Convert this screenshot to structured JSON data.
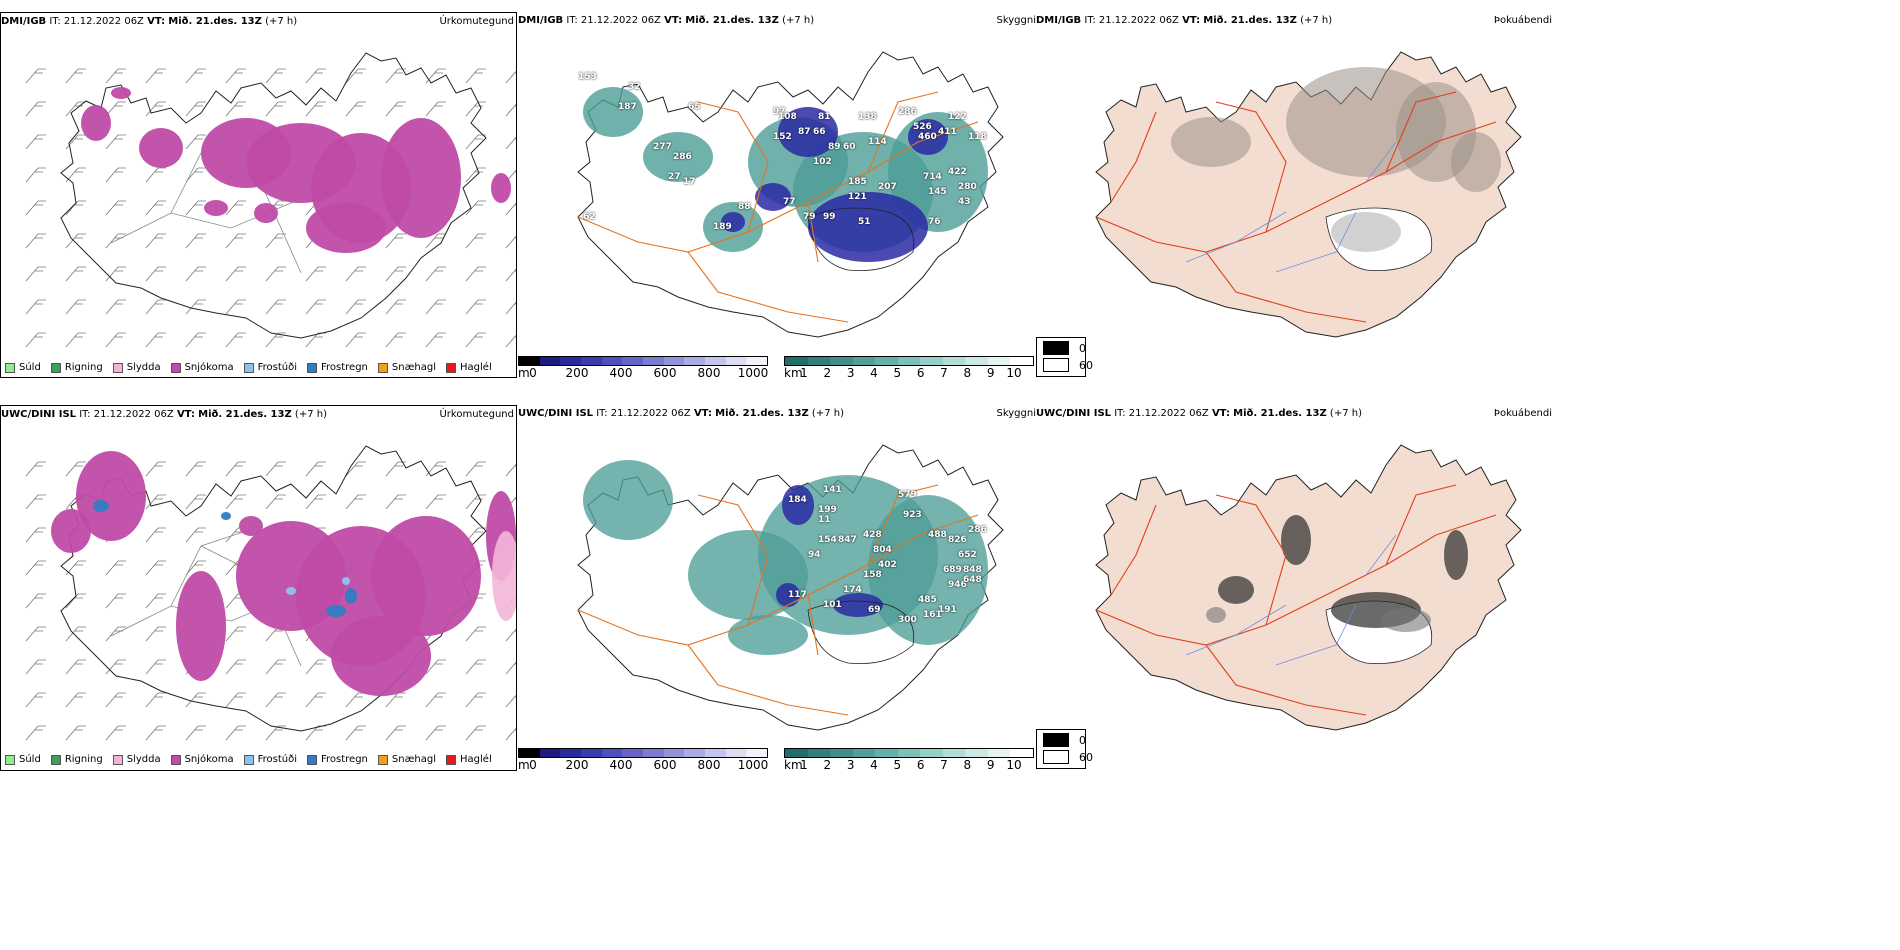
{
  "rows": [
    {
      "model": "DMI/IGB",
      "it_label": "IT:",
      "it_value": "21.12.2022 06Z",
      "vt_label": "VT:",
      "vt_value": "Mið. 21.des. 13Z",
      "lead": "(+7 h)",
      "precip_title": "Úrkomutegund",
      "vis_title": "Skyggni",
      "fog_title": "Þokuábendi",
      "cloud_values": [
        "153",
        "187",
        "277",
        "286",
        "17",
        "189",
        "88",
        "77",
        "79",
        "99",
        "51",
        "97",
        "108",
        "81",
        "152",
        "87",
        "66",
        "89",
        "102",
        "60",
        "138",
        "114",
        "185",
        "207",
        "121",
        "286",
        "526",
        "460",
        "411",
        "122",
        "118",
        "145",
        "714",
        "280",
        "76",
        "422",
        "62",
        "43",
        "27",
        "65",
        "32"
      ]
    },
    {
      "model": "UWC/DINI ISL",
      "it_label": "IT:",
      "it_value": "21.12.2022 06Z",
      "vt_label": "VT:",
      "vt_value": "Mið. 21.des. 13Z",
      "lead": "(+7 h)",
      "precip_title": "Úrkomutegund",
      "vis_title": "Skyggni",
      "fog_title": "Þokuábendi",
      "cloud_values": [
        "184",
        "141",
        "199",
        "11",
        "154",
        "847",
        "94",
        "117",
        "101",
        "174",
        "158",
        "69",
        "300",
        "191",
        "428",
        "804",
        "402",
        "579",
        "923",
        "488",
        "826",
        "652",
        "689",
        "946",
        "648",
        "848",
        "286",
        "485",
        "161"
      ]
    }
  ],
  "precip_legend": [
    {
      "label": "Súld",
      "color": "#90ee90"
    },
    {
      "label": "Rigning",
      "color": "#3c9f5c"
    },
    {
      "label": "Slydda",
      "color": "#f4b6d8"
    },
    {
      "label": "Snjókoma",
      "color": "#c04ba6"
    },
    {
      "label": "Frostúði",
      "color": "#8ec3f0"
    },
    {
      "label": "Frostregn",
      "color": "#2f7dc3"
    },
    {
      "label": "Snæhagl",
      "color": "#f39c1e"
    },
    {
      "label": "Haglél",
      "color": "#e41a1a"
    }
  ],
  "cloud_base_scale": {
    "unit": "m",
    "ticks": [
      "0",
      "200",
      "400",
      "600",
      "800",
      "1000"
    ],
    "colors": [
      "#000000",
      "#1b1b80",
      "#2a2a9e",
      "#3b3bb0",
      "#4f4fbd",
      "#6464c7",
      "#7b7bd0",
      "#9393da",
      "#ababe3",
      "#c4c4ec",
      "#ddddf4",
      "#f2f2fb"
    ]
  },
  "visibility_scale": {
    "unit": "km",
    "ticks": [
      "1",
      "2",
      "3",
      "4",
      "5",
      "6",
      "7",
      "8",
      "9",
      "10"
    ],
    "colors": [
      "#1f6e6c",
      "#2f7f7b",
      "#3f8e8a",
      "#52a09a",
      "#66b0aa",
      "#7cc0b9",
      "#95cfc8",
      "#b0ddd6",
      "#cbe9e4",
      "#e4f4f1",
      "#ffffff"
    ]
  },
  "fog_scale": {
    "rows": [
      {
        "label": "0",
        "color": "#000000"
      },
      {
        "label": "60",
        "color": "#ffffff"
      }
    ]
  },
  "colors": {
    "snow": "#c04ba6",
    "sleet": "#f4b6d8",
    "freezing_rain": "#2f7dc3",
    "freezing_drizzle": "#8ec3f0",
    "land_tan": "#f3ddd0",
    "road_orange": "#e5731f",
    "road_red": "#e0401c",
    "river_blue": "#6f8fe3",
    "cloud_blue": "#2a2aa3",
    "vis_teal": "#4e9e97",
    "coast": "#222222"
  }
}
